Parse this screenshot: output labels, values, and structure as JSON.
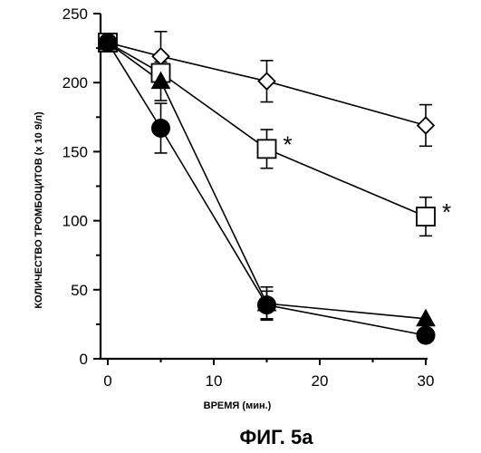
{
  "caption": "ФИГ. 5а",
  "chart_data": {
    "type": "line",
    "title": "",
    "xlabel": "ВРЕМЯ (мин.)",
    "ylabel": "КОЛИЧЕСТВО ТРОМБОЦИТОВ (x 10 9/л)",
    "xlim": [
      0,
      30
    ],
    "ylim": [
      0,
      250
    ],
    "x_ticks": [
      0,
      10,
      20,
      30
    ],
    "y_ticks": [
      0,
      50,
      100,
      150,
      200,
      250
    ],
    "x": [
      0,
      5,
      15,
      30
    ],
    "series": [
      {
        "marker": "diamond-open",
        "values": [
          229,
          219,
          201,
          169
        ],
        "errors": [
          0,
          18,
          15,
          15
        ],
        "significance": []
      },
      {
        "marker": "square-open",
        "values": [
          229,
          207,
          152,
          103
        ],
        "errors": [
          0,
          10,
          14,
          14
        ],
        "significance": [
          "",
          "",
          "*",
          "*"
        ]
      },
      {
        "marker": "triangle-filled",
        "values": [
          229,
          201,
          40,
          29
        ],
        "errors": [
          0,
          14,
          12,
          0
        ],
        "significance": []
      },
      {
        "marker": "circle-filled",
        "values": [
          229,
          167,
          39,
          17
        ],
        "errors": [
          0,
          18,
          10,
          0
        ],
        "significance": []
      }
    ],
    "grid": false,
    "legend": "none"
  }
}
